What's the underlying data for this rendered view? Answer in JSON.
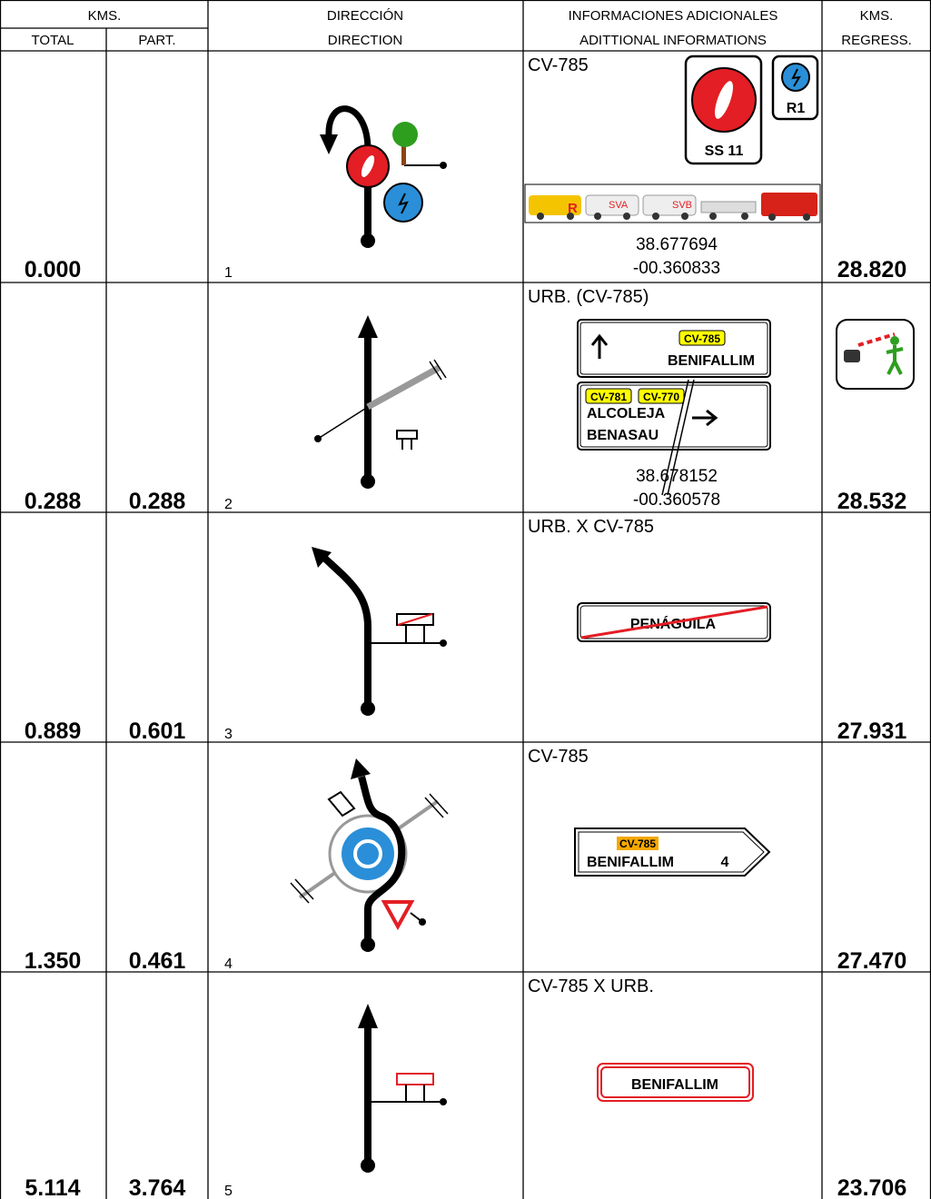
{
  "header": {
    "kms_total_part": "KMS.",
    "direccion": "DIRECCIÓN",
    "informaciones": "INFORMACIONES ADICIONALES",
    "kms_regress": "KMS.",
    "total": "TOTAL",
    "part": "PART.",
    "direction": "DIRECTION",
    "additional_informations": "ADITTIONAL INFORMATIONS",
    "regress": "REGRESS."
  },
  "rows": [
    {
      "total": "0.000",
      "step": "1",
      "road": "CV-785",
      "signs": [
        "SS 11",
        "R1"
      ],
      "vehicles": [
        "R",
        "SVA",
        "SVB"
      ],
      "latitude": "38.677694",
      "longitude": "-00.360833",
      "regress": "28.820"
    },
    {
      "total": "0.288",
      "part": "0.288",
      "step": "2",
      "road": "URB. (CV-785)",
      "signs": [
        "CV-785",
        "BENIFALLIM",
        "CV-781",
        "CV-770",
        "ALCOLEJA",
        "BENASAU"
      ],
      "latitude": "38.678152",
      "longitude": "-00.360578",
      "regress": "28.532"
    },
    {
      "total": "0.889",
      "part": "0.601",
      "step": "3",
      "road": "URB. X CV-785",
      "signs": [
        "PENÁGUILA"
      ],
      "regress": "27.931"
    },
    {
      "total": "1.350",
      "part": "0.461",
      "step": "4",
      "road": "CV-785",
      "signs": [
        "CV-785",
        "BENIFALLIM",
        "4"
      ],
      "regress": "27.470"
    },
    {
      "total": "5.114",
      "part": "3.764",
      "step": "5",
      "road": "CV-785 X URB.",
      "signs": [
        "BENIFALLIM"
      ],
      "regress": "23.706"
    }
  ]
}
